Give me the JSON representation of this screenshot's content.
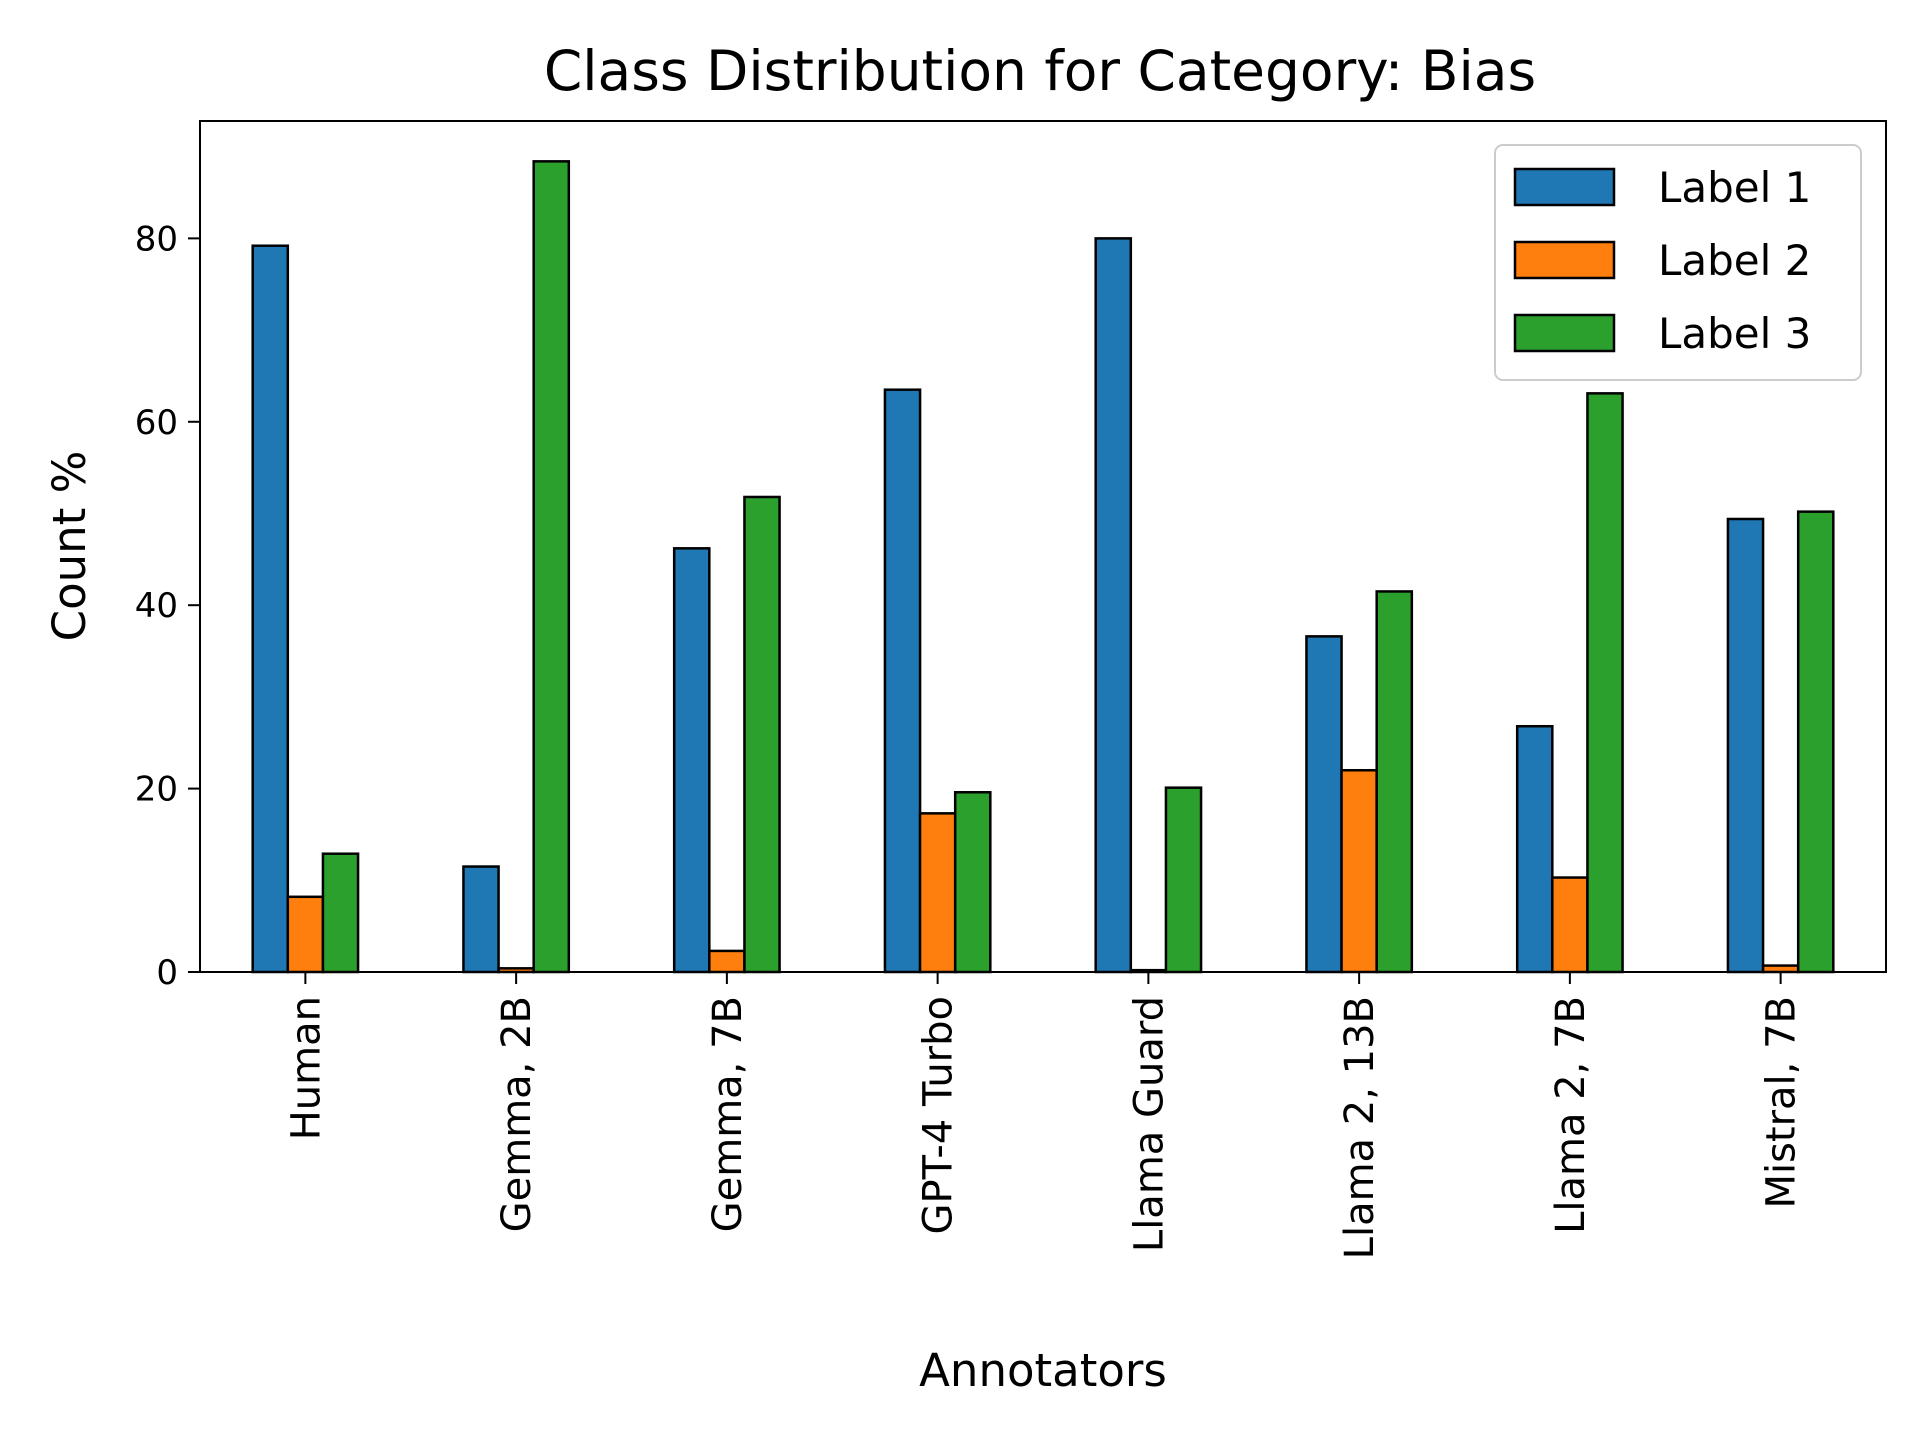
{
  "chart_data": {
    "type": "bar",
    "title": "Class Distribution for Category: Bias",
    "xlabel": "Annotators",
    "ylabel": "Count %",
    "categories": [
      "Human",
      "Gemma, 2B",
      "Gemma, 7B",
      "GPT-4 Turbo",
      "Llama Guard",
      "Llama 2, 13B",
      "Llama 2, 7B",
      "Mistral, 7B"
    ],
    "series": [
      {
        "name": "Label 1",
        "color": "#1f77b4",
        "values": [
          79.2,
          11.5,
          46.2,
          63.5,
          80.0,
          36.6,
          26.8,
          49.4
        ]
      },
      {
        "name": "Label 2",
        "color": "#ff7f0e",
        "values": [
          8.2,
          0.4,
          2.3,
          17.3,
          0.2,
          22.0,
          10.3,
          0.7
        ]
      },
      {
        "name": "Label 3",
        "color": "#2ca02c",
        "values": [
          12.9,
          88.4,
          51.8,
          19.6,
          20.1,
          41.5,
          63.1,
          50.2
        ]
      }
    ],
    "ylim": [
      0,
      92.8
    ],
    "yticks": [
      0,
      20,
      40,
      60,
      80
    ],
    "grid": false,
    "legend_position": "top-right"
  }
}
